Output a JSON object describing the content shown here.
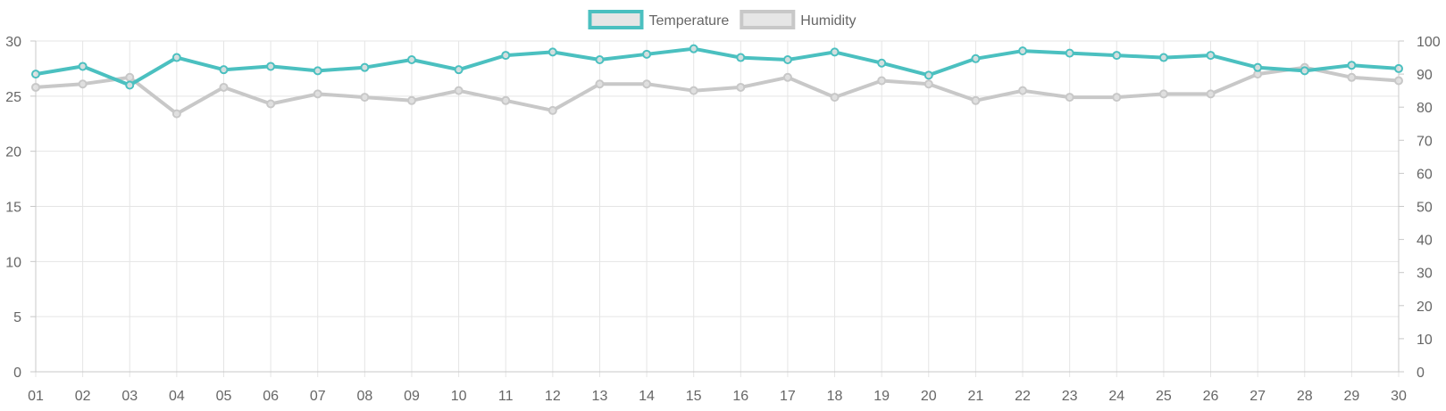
{
  "chart_data": {
    "type": "line",
    "categories": [
      "01",
      "02",
      "03",
      "04",
      "05",
      "06",
      "07",
      "08",
      "09",
      "10",
      "11",
      "12",
      "13",
      "14",
      "15",
      "16",
      "17",
      "18",
      "19",
      "20",
      "21",
      "22",
      "23",
      "24",
      "25",
      "26",
      "27",
      "28",
      "29",
      "30"
    ],
    "series": [
      {
        "name": "Temperature",
        "axis": "left",
        "color": "#4bc0c0",
        "values": [
          27.0,
          27.7,
          26.0,
          28.5,
          27.4,
          27.7,
          27.3,
          27.6,
          28.3,
          27.4,
          28.7,
          29.0,
          28.3,
          28.8,
          29.3,
          28.5,
          28.3,
          29.0,
          28.0,
          26.9,
          28.4,
          29.1,
          28.9,
          28.7,
          28.5,
          28.7,
          27.6,
          27.3,
          27.8,
          27.5
        ]
      },
      {
        "name": "Humidity",
        "axis": "right",
        "color": "#c8c8c8",
        "values": [
          86,
          87,
          89,
          78,
          86,
          81,
          84,
          83,
          82,
          85,
          82,
          79,
          87,
          87,
          85,
          86,
          89,
          83,
          88,
          87,
          82,
          85,
          83,
          83,
          84,
          84,
          90,
          92,
          89,
          88
        ]
      }
    ],
    "y_left": {
      "min": 0,
      "max": 30,
      "ticks": [
        0,
        5,
        10,
        15,
        20,
        25,
        30
      ]
    },
    "y_right": {
      "min": 0,
      "max": 100,
      "ticks": [
        0,
        10,
        20,
        30,
        40,
        50,
        60,
        70,
        80,
        90,
        100
      ]
    },
    "legend": {
      "position": "top-center"
    },
    "grid": true
  }
}
